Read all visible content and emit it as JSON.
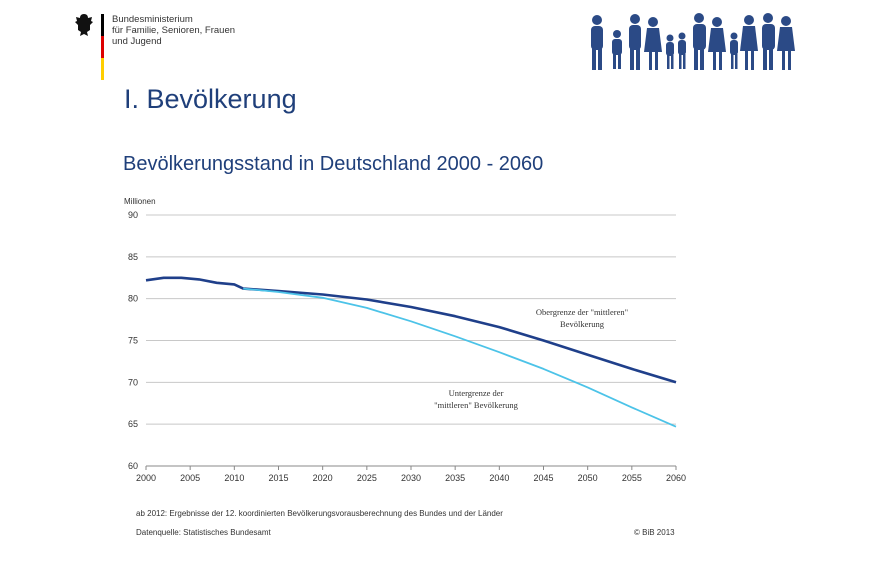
{
  "header": {
    "ministry_line1": "Bundesministerium",
    "ministry_line2": "für Familie, Senioren, Frauen",
    "ministry_line3": "und Jugend",
    "flag_colors": [
      "#000000",
      "#dd0000",
      "#ffce00"
    ]
  },
  "section_title": "I. Bevölkerung",
  "chart_title": "Bevölkerungsstand in Deutschland 2000 - 2060",
  "chart_data": {
    "type": "line",
    "title": "Bevölkerungsstand in Deutschland 2000 - 2060",
    "ylabel": "Millionen",
    "xlabel": "",
    "xlim": [
      2000,
      2060
    ],
    "ylim": [
      60,
      90
    ],
    "x_ticks": [
      "2000",
      "2005",
      "2010",
      "2015",
      "2020",
      "2025",
      "2030",
      "2035",
      "2040",
      "2045",
      "2050",
      "2055",
      "2060"
    ],
    "y_ticks": [
      "60",
      "65",
      "70",
      "75",
      "80",
      "85",
      "90"
    ],
    "grid": true,
    "series": [
      {
        "name": "Obergrenze der \"mittleren\" Bevölkerung",
        "color": "#1f3f8a",
        "x": [
          2000,
          2002,
          2004,
          2006,
          2008,
          2010,
          2011,
          2015,
          2020,
          2025,
          2030,
          2035,
          2040,
          2045,
          2050,
          2055,
          2060
        ],
        "y": [
          82.2,
          82.5,
          82.5,
          82.3,
          81.9,
          81.7,
          81.2,
          80.9,
          80.5,
          79.9,
          79.0,
          77.9,
          76.6,
          75.0,
          73.3,
          71.6,
          70.0
        ]
      },
      {
        "name": "Untergrenze der \"mittleren\" Bevölkerung",
        "color": "#4cc3e8",
        "x": [
          2011,
          2015,
          2020,
          2025,
          2030,
          2035,
          2040,
          2045,
          2050,
          2055,
          2060
        ],
        "y": [
          81.2,
          80.8,
          80.1,
          78.9,
          77.3,
          75.5,
          73.6,
          71.6,
          69.4,
          67.0,
          64.7
        ]
      }
    ],
    "annotations": [
      {
        "lines": [
          "Obergrenze der \"mittleren\"",
          "Bevölkerung"
        ]
      },
      {
        "lines": [
          "Untergrenze der",
          "\"mittleren\" Bevölkerung"
        ]
      }
    ]
  },
  "footer": {
    "note": "ab 2012: Ergebnisse der 12. koordinierten Bevölkerungsvorausberechnung des Bundes  und der Länder",
    "source": "Datenquelle: Statistisches Bundesamt",
    "copyright": "© BiB 2013"
  }
}
